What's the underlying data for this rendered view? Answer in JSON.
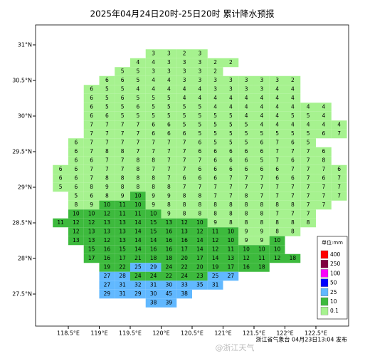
{
  "chart_data": {
    "type": "grid-map",
    "title": "2025年04月24日20时-25日20时 累计降水预报",
    "xticks": [
      {
        "value": 118.5,
        "label": "118.5°E"
      },
      {
        "value": 119,
        "label": "119°E"
      },
      {
        "value": 119.5,
        "label": "119.5°E"
      },
      {
        "value": 120,
        "label": "120°E"
      },
      {
        "value": 120.5,
        "label": "120.5°E"
      },
      {
        "value": 121,
        "label": "121°E"
      },
      {
        "value": 121.5,
        "label": "121.5°E"
      },
      {
        "value": 122,
        "label": "122°E"
      },
      {
        "value": 122.5,
        "label": "122.5°E"
      }
    ],
    "yticks": [
      {
        "value": 31,
        "label": "31°N"
      },
      {
        "value": 30.5,
        "label": "30.5°N"
      },
      {
        "value": 30,
        "label": "30°N"
      },
      {
        "value": 29.5,
        "label": "29.5°N"
      },
      {
        "value": 29,
        "label": "29°N"
      },
      {
        "value": 28.5,
        "label": "28.5°N"
      },
      {
        "value": 28,
        "label": "28°N"
      },
      {
        "value": 27.5,
        "label": "27.5°N"
      }
    ],
    "legend": {
      "unit": "单位:mm",
      "levels": [
        {
          "value": 400,
          "color": "#ff0000"
        },
        {
          "value": 250,
          "color": "#800040"
        },
        {
          "value": 100,
          "color": "#fa00fa"
        },
        {
          "value": 50,
          "color": "#0000fe"
        },
        {
          "value": 25,
          "color": "#61b8ff"
        },
        {
          "value": 10,
          "color": "#3dba3d"
        },
        {
          "value": 0.1,
          "color": "#a6f28f"
        }
      ]
    },
    "grid": [
      {
        "lat": 30.875,
        "lon0": 119.875,
        "values": [
          3,
          3,
          2,
          3
        ]
      },
      {
        "lat": 30.75,
        "lon0": 119.625,
        "values": [
          4,
          4,
          3,
          3,
          3,
          2,
          2
        ]
      },
      {
        "lat": 30.625,
        "lon0": 119.375,
        "values": [
          5,
          5,
          3,
          3,
          3,
          3,
          2
        ]
      },
      {
        "lat": 30.5,
        "lon0": 119.125,
        "values": [
          6,
          6,
          5,
          4,
          4,
          3,
          3,
          3,
          3,
          3,
          3,
          3,
          2
        ]
      },
      {
        "lat": 30.375,
        "lon0": 118.875,
        "values": [
          6,
          5,
          5,
          4,
          4,
          4,
          4,
          4,
          3,
          3,
          3,
          3,
          4,
          4
        ]
      },
      {
        "lat": 30.25,
        "lon0": 118.875,
        "values": [
          6,
          5,
          6,
          5,
          5,
          5,
          4,
          4,
          4,
          4,
          4,
          4,
          4,
          4
        ]
      },
      {
        "lat": 30.125,
        "lon0": 118.875,
        "values": [
          6,
          5,
          5,
          6,
          5,
          5,
          5,
          5,
          4,
          4,
          4,
          4,
          4,
          4,
          4,
          4
        ]
      },
      {
        "lat": 30.0,
        "lon0": 118.875,
        "values": [
          6,
          6,
          5,
          5,
          5,
          5,
          5,
          5,
          5,
          5,
          4,
          4,
          4,
          5,
          5,
          4
        ]
      },
      {
        "lat": 29.875,
        "lon0": 118.875,
        "values": [
          7,
          7,
          7,
          7,
          6,
          6,
          5,
          5,
          5,
          5,
          5,
          4,
          4,
          4,
          4,
          4,
          4
        ]
      },
      {
        "lat": 29.75,
        "lon0": 118.875,
        "values": [
          7,
          7,
          7,
          7,
          6,
          6,
          6,
          5,
          5,
          5,
          5,
          5,
          5,
          5,
          5,
          6,
          7
        ]
      },
      {
        "lat": 29.625,
        "lon0": 118.625,
        "values": [
          6,
          7,
          7,
          7,
          7,
          7,
          7,
          7,
          6,
          5,
          5,
          5,
          6,
          7,
          6,
          5
        ]
      },
      {
        "lat": 29.5,
        "lon0": 118.625,
        "values": [
          6,
          7,
          8,
          8,
          7,
          7,
          7,
          7,
          6,
          6,
          6,
          6,
          6,
          7,
          7,
          7,
          6
        ]
      },
      {
        "lat": 29.375,
        "lon0": 118.625,
        "values": [
          6,
          6,
          7,
          7,
          8,
          8,
          7,
          7,
          7,
          6,
          6,
          6,
          5,
          7,
          6,
          7,
          8
        ]
      },
      {
        "lat": 29.25,
        "lon0": 118.375,
        "values": [
          6,
          6,
          7,
          7,
          7,
          8,
          7,
          7,
          7,
          6,
          6,
          6,
          6,
          6,
          6,
          7,
          7,
          7,
          6
        ]
      },
      {
        "lat": 29.125,
        "lon0": 118.375,
        "values": [
          6,
          6,
          7,
          8,
          8,
          8,
          8,
          7,
          6,
          6,
          6,
          7,
          7,
          7,
          6,
          6,
          7,
          6,
          7
        ]
      },
      {
        "lat": 29.0,
        "lon0": 118.375,
        "values": [
          5,
          6,
          8,
          9,
          8,
          8,
          8,
          8,
          7,
          7,
          7,
          7,
          7,
          7,
          7,
          7,
          7,
          7,
          7
        ]
      },
      {
        "lat": 28.875,
        "lon0": 118.625,
        "values": [
          5,
          6,
          8,
          9,
          10,
          9,
          9,
          8,
          8,
          7,
          7,
          8,
          7,
          7,
          7,
          7,
          7,
          7
        ]
      },
      {
        "lat": 28.75,
        "lon0": 118.625,
        "values": [
          8,
          9,
          10,
          11,
          10,
          9,
          8,
          8,
          8,
          8,
          8,
          8,
          8,
          8,
          8,
          7,
          7
        ]
      },
      {
        "lat": 28.625,
        "lon0": 118.625,
        "values": [
          10,
          10,
          12,
          11,
          11,
          10,
          9,
          8,
          8,
          8,
          8,
          8,
          8,
          7,
          7,
          7
        ]
      },
      {
        "lat": 28.5,
        "lon0": 118.375,
        "values": [
          11,
          12,
          12,
          13,
          13,
          14,
          15,
          13,
          12,
          10,
          9,
          8,
          8,
          8,
          8,
          8,
          8
        ]
      },
      {
        "lat": 28.375,
        "lon0": 118.625,
        "values": [
          12,
          13,
          13,
          13,
          14,
          15,
          16,
          13,
          12,
          11,
          10,
          9,
          9,
          8,
          8
        ]
      },
      {
        "lat": 28.25,
        "lon0": 118.625,
        "values": [
          13,
          13,
          12,
          13,
          14,
          14,
          16,
          16,
          14,
          12,
          10,
          9,
          9,
          10
        ]
      },
      {
        "lat": 28.125,
        "lon0": 118.875,
        "values": [
          15,
          16,
          15,
          14,
          16,
          16,
          17,
          14,
          12,
          11,
          10,
          10,
          10
        ]
      },
      {
        "lat": 28.0,
        "lon0": 118.875,
        "values": [
          17,
          16,
          17,
          21,
          18,
          18,
          20,
          17,
          14,
          13,
          12,
          11,
          12,
          18
        ]
      },
      {
        "lat": 27.875,
        "lon0": 119.125,
        "values": [
          19,
          22,
          25,
          29,
          24,
          22,
          20,
          19,
          17,
          16,
          18
        ]
      },
      {
        "lat": 27.75,
        "lon0": 119.125,
        "values": [
          27,
          28,
          24,
          24,
          22,
          24,
          23,
          25,
          27
        ]
      },
      {
        "lat": 27.625,
        "lon0": 119.125,
        "values": [
          27,
          31,
          32,
          31,
          30,
          33,
          35,
          31
        ]
      },
      {
        "lat": 27.5,
        "lon0": 119.125,
        "values": [
          29,
          31,
          29,
          30,
          45,
          38
        ]
      },
      {
        "lat": 27.375,
        "lon0": 119.875,
        "values": [
          38,
          39
        ]
      }
    ],
    "footer": "浙江省气象台 04月23日13:04 发布",
    "watermark": "@浙江天气"
  }
}
